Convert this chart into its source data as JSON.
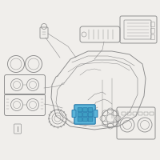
{
  "bg_color": "#f0eeeb",
  "highlight_color": "#5ab4d8",
  "highlight_dark": "#2a7aaa",
  "highlight_mid": "#3e9fc4",
  "outline_color": "#8a8a8a",
  "line_color": "#9a9a9a",
  "line_width": 0.65,
  "dpi": 100,
  "fig_width": 2.0,
  "fig_height": 2.0
}
